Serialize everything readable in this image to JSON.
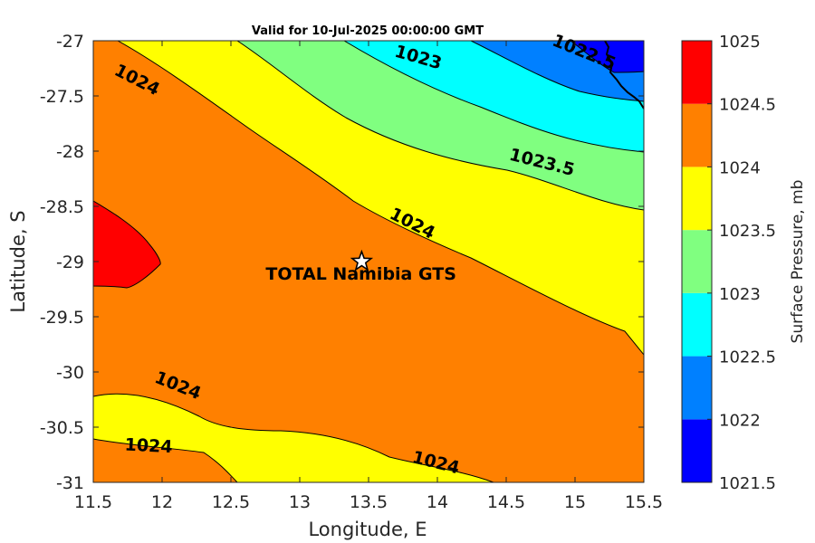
{
  "chart_data": {
    "type": "contour",
    "title": "Valid for 10-Jul-2025 00:00:00 GMT",
    "xlabel": "Longitude, E",
    "ylabel": "Latitude, S",
    "xlim": [
      11.5,
      15.5
    ],
    "ylim": [
      -31,
      -27
    ],
    "x_ticks": [
      "11.5",
      "12",
      "12.5",
      "13",
      "13.5",
      "14",
      "14.5",
      "15",
      "15.5"
    ],
    "y_ticks": [
      "-27",
      "-27.5",
      "-28",
      "-28.5",
      "-29",
      "-29.5",
      "-30",
      "-30.5",
      "-31"
    ],
    "x_tick_values": [
      11.5,
      12,
      12.5,
      13,
      13.5,
      14,
      14.5,
      15,
      15.5
    ],
    "y_tick_values": [
      -27,
      -27.5,
      -28,
      -28.5,
      -29,
      -29.5,
      -30,
      -30.5,
      -31
    ],
    "colorbar": {
      "label": "Surface Pressure, mb",
      "levels": [
        1021.5,
        1022,
        1022.5,
        1023,
        1023.5,
        1024,
        1024.5,
        1025
      ],
      "tick_labels": [
        "1025",
        "1024.5",
        "1024",
        "1023.5",
        "1023",
        "1022.5",
        "1022",
        "1021.5"
      ],
      "colors": [
        "#0000ff",
        "#0080ff",
        "#00ffff",
        "#80ff80",
        "#ffff00",
        "#ff8000",
        "#ff0000",
        "#800000"
      ]
    },
    "contour_labels": [
      {
        "text": "1024",
        "x": 11.8,
        "y": -27.4,
        "angle": 27
      },
      {
        "text": "1023",
        "x": 13.85,
        "y": -27.2,
        "angle": 16
      },
      {
        "text": "1022.5",
        "x": 15.05,
        "y": -27.15,
        "angle": 22
      },
      {
        "text": "1023.5",
        "x": 14.75,
        "y": -28.15,
        "angle": 14
      },
      {
        "text": "1024",
        "x": 13.8,
        "y": -28.7,
        "angle": 27
      },
      {
        "text": "1024",
        "x": 12.1,
        "y": -30.17,
        "angle": 22
      },
      {
        "text": "1024",
        "x": 11.9,
        "y": -30.72,
        "angle": 3
      },
      {
        "text": "1024",
        "x": 13.98,
        "y": -30.87,
        "angle": 14
      }
    ],
    "site": {
      "name": "TOTAL Namibia GTS",
      "lon": 13.45,
      "lat": -29.0
    }
  }
}
